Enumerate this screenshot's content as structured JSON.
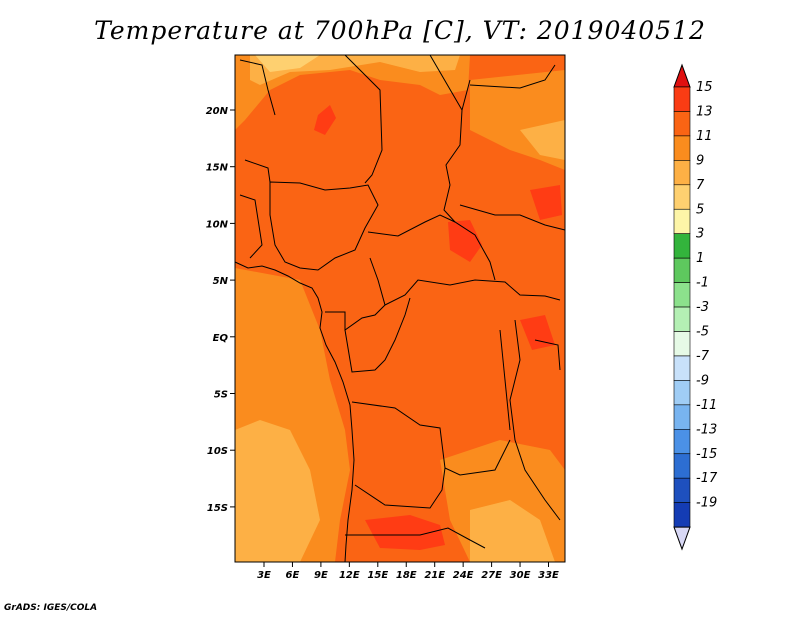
{
  "title": "Temperature at 700hPa [C], VT: 2019040512",
  "credit": "GrADS: IGES/COLA",
  "map": {
    "lat_labels": [
      "20N",
      "15N",
      "10N",
      "5N",
      "EQ",
      "5S",
      "10S",
      "15S"
    ],
    "lon_labels": [
      "3E",
      "6E",
      "9E",
      "12E",
      "15E",
      "18E",
      "21E",
      "24E",
      "27E",
      "30E",
      "33E"
    ],
    "base_color": "#fa6414",
    "warm_color": "#fa8c1e",
    "warmer_color": "#fdb045",
    "hot_color": "#ff3c14",
    "cool_color": "#fed070"
  },
  "colorbar": {
    "labels": [
      "15",
      "13",
      "11",
      "9",
      "7",
      "5",
      "3",
      "1",
      "-1",
      "-3",
      "-5",
      "-7",
      "-9",
      "-11",
      "-13",
      "-15",
      "-17",
      "-19"
    ],
    "colors": [
      "#ef0d0d",
      "#fa3c14",
      "#fa6414",
      "#fa8c1e",
      "#fdb045",
      "#fed070",
      "#fdf5a8",
      "#33b43c",
      "#5ec85e",
      "#8ce18c",
      "#b4f0b4",
      "#e6fae6",
      "#c8e1fa",
      "#a0cdf5",
      "#78b4f0",
      "#4b91e6",
      "#2d6ed2",
      "#1e50be",
      "#143cb4",
      "#0a1e82"
    ],
    "tip_top_color": "#e01010",
    "tip_bottom_color": "#d8d8f5"
  }
}
